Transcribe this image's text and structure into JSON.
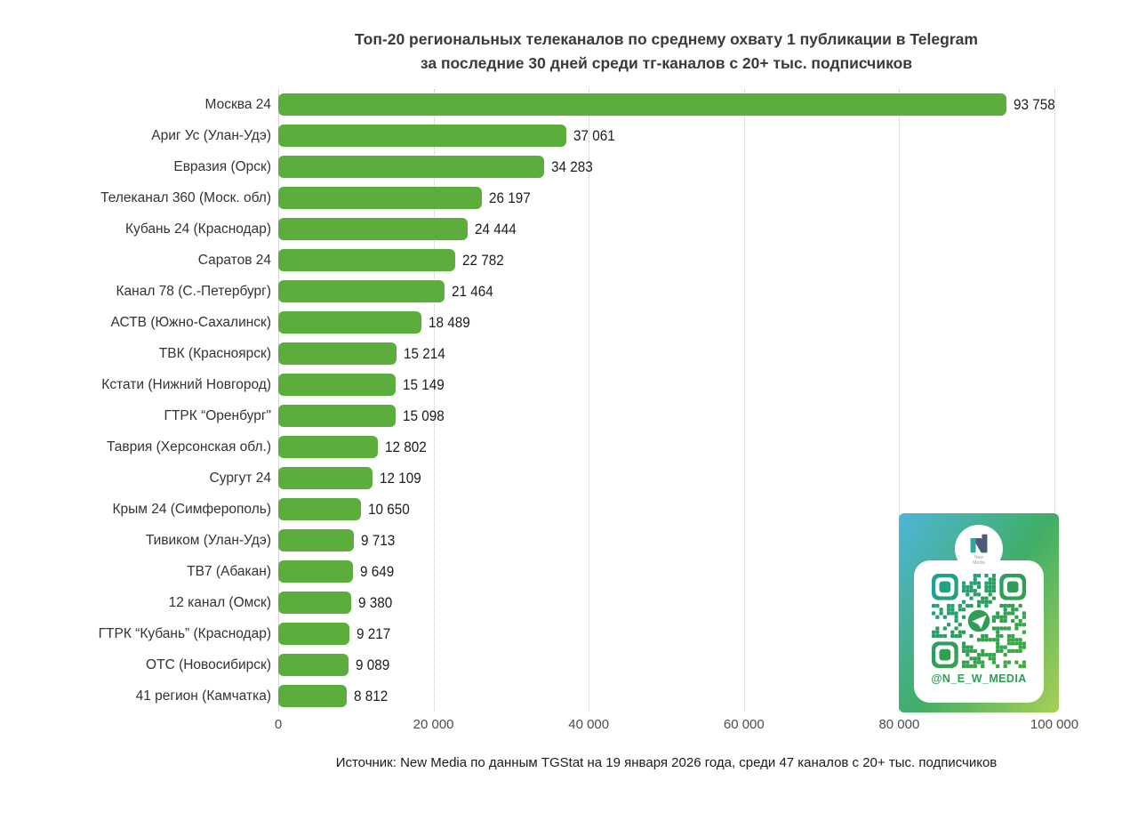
{
  "title": {
    "line1": "Топ-20 региональных телеканалов по среднему охвату 1 публикации в Telegram",
    "line2": "за последние 30 дней среди тг-каналов с 20+ тыс. подписчиков"
  },
  "chart_data": {
    "type": "bar",
    "orientation": "horizontal",
    "title": "Топ-20 региональных телеканалов по среднему охвату 1 публикации в Telegram за последние 30 дней среди тг-каналов с 20+ тыс. подписчиков",
    "categories": [
      "Москва 24",
      "Ариг Ус (Улан-Удэ)",
      "Евразия (Орск)",
      "Телеканал 360 (Моск. обл)",
      "Кубань 24 (Краснодар)",
      "Саратов 24",
      "Канал 78 (С.-Петербург)",
      "АСТВ (Южно-Сахалинск)",
      "ТВК (Красноярск)",
      "Кстати (Нижний Новгород)",
      "ГТРК “Оренбург\"",
      "Таврия (Херсонская обл.)",
      "Сургут 24",
      "Крым 24 (Симферополь)",
      "Тивиком (Улан-Удэ)",
      "ТВ7 (Абакан)",
      "12 канал (Омск)",
      "ГТРК “Кубань” (Краснодар)",
      "ОТС (Новосибирск)",
      "41 регион (Камчатка)"
    ],
    "values": [
      93758,
      37061,
      34283,
      26197,
      24444,
      22782,
      21464,
      18489,
      15214,
      15149,
      15098,
      12802,
      12109,
      10650,
      9713,
      9649,
      9380,
      9217,
      9089,
      8812
    ],
    "value_labels": [
      "93 758",
      "37 061",
      "34 283",
      "26 197",
      "24 444",
      "22 782",
      "21 464",
      "18 489",
      "15 214",
      "15 149",
      "15 098",
      "12 802",
      "12 109",
      "10 650",
      "9 713",
      "9 649",
      "9 380",
      "9 217",
      "9 089",
      "8 812"
    ],
    "xlabel": "",
    "ylabel": "",
    "xlim": [
      0,
      100000
    ],
    "x_tick_values": [
      0,
      20000,
      40000,
      60000,
      80000,
      100000
    ],
    "x_tick_labels": [
      "0",
      "20 000",
      "40 000",
      "60 000",
      "80 000",
      "100 000"
    ],
    "bar_color": "#5BAD3C",
    "grid": "vertical-dotted",
    "legend_position": "none"
  },
  "source": {
    "text": "Источник: New Media по данным TGStat на 19 января 2026 года, среди 47 каналов с 20+ тыс. подписчиков"
  },
  "qr": {
    "handle": "@N_E_W_MEDIA",
    "logo_line1": "New",
    "logo_line2": "Media",
    "colors": {
      "gradient_start": "#4fb5d9",
      "gradient_mid": "#40ae66",
      "gradient_end": "#a9cf55",
      "qr_green": "#2f9e55",
      "handle_green": "#2f9e55"
    }
  }
}
